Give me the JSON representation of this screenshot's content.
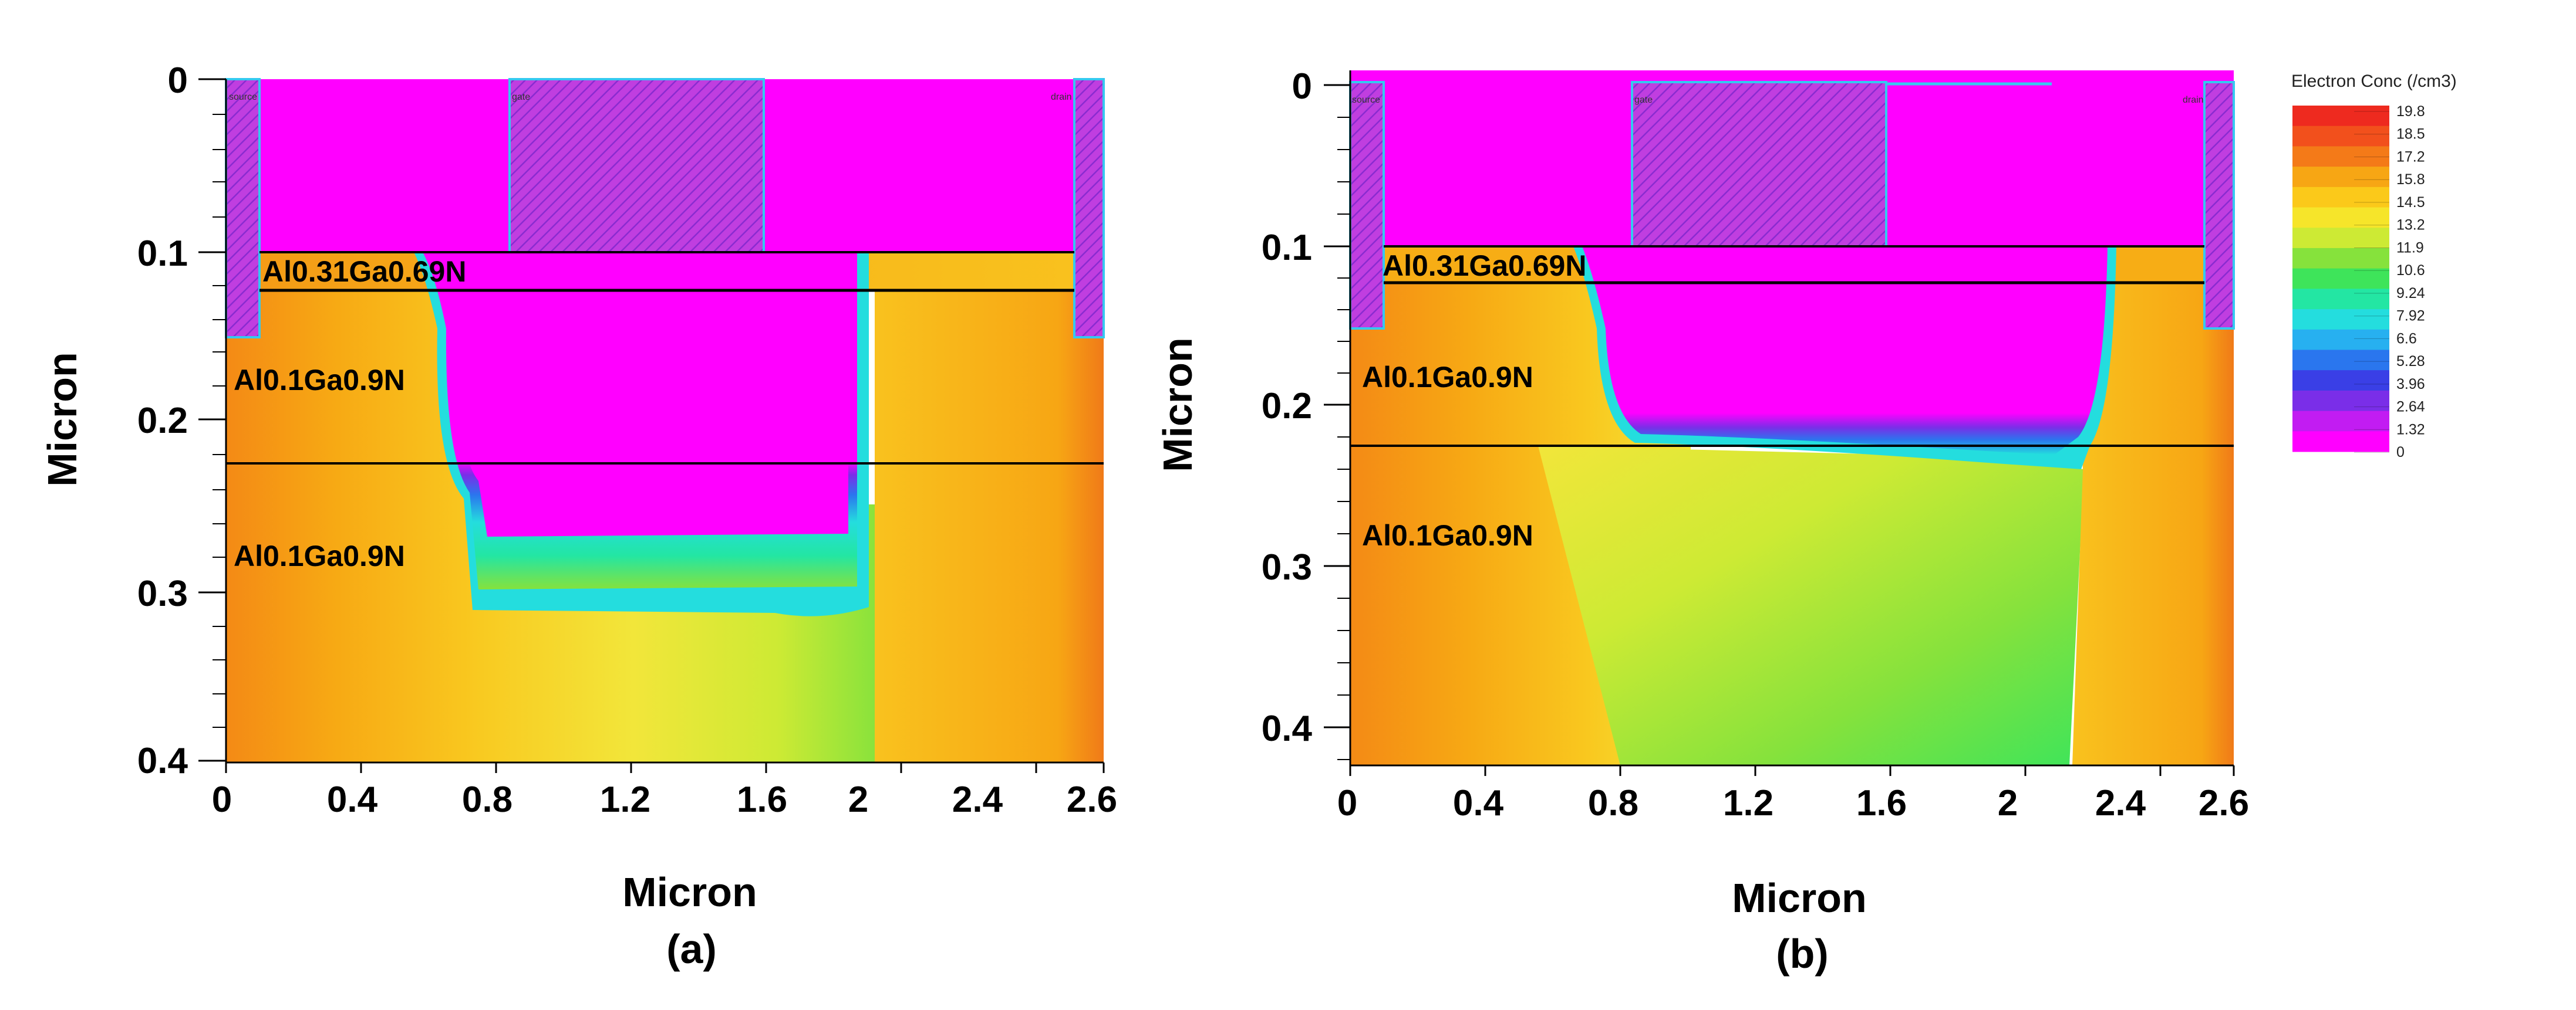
{
  "chart_data": [
    {
      "type": "heatmap",
      "panel_label": "(a)",
      "xlabel": "Micron",
      "ylabel": "Micron",
      "xlim": [
        0,
        2.6
      ],
      "ylim": [
        0.4,
        0
      ],
      "x_ticks": [
        "0",
        "0.4",
        "0.8",
        "1.2",
        "1.6",
        "2",
        "2.4",
        "2.6"
      ],
      "y_ticks": [
        "0",
        "0.1",
        "0.2",
        "0.3",
        "0.4"
      ],
      "regions": [
        {
          "label": "Al0.31Ga0.69N",
          "y_from": 0.1,
          "y_to": 0.125
        },
        {
          "label": "Al0.1Ga0.9N",
          "y_from": 0.125,
          "y_to": 0.225
        },
        {
          "label": "Al0.1Ga0.9N",
          "y_from": 0.225,
          "y_to": 0.4
        }
      ],
      "contacts": [
        {
          "label": "source",
          "x": [
            0.0,
            0.1
          ],
          "y": [
            0.0,
            0.15
          ]
        },
        {
          "label": "gate",
          "x": [
            0.9,
            1.7
          ],
          "y": [
            0.0,
            0.1
          ]
        },
        {
          "label": "drain",
          "x": [
            2.5,
            2.6
          ],
          "y": [
            0.0,
            0.15
          ]
        }
      ],
      "depletion_region": {
        "x_left": 0.65,
        "x_right": 2.0,
        "bottom_depth": 0.27,
        "edge_depth": 0.31
      },
      "colorbar_min": 0,
      "colorbar_max": 19.8
    },
    {
      "type": "heatmap",
      "panel_label": "(b)",
      "xlabel": "Micron",
      "ylabel": "Micron",
      "xlim": [
        0,
        2.6
      ],
      "ylim": [
        0.42,
        0
      ],
      "x_ticks": [
        "0",
        "0.4",
        "0.8",
        "1.2",
        "1.6",
        "2",
        "2.4",
        "2.6"
      ],
      "y_ticks": [
        "0",
        "0.1",
        "0.2",
        "0.3",
        "0.4"
      ],
      "regions": [
        {
          "label": "Al0.31Ga0.69N",
          "y_from": 0.1,
          "y_to": 0.122
        },
        {
          "label": "Al0.1Ga0.9N",
          "y_from": 0.122,
          "y_to": 0.222
        },
        {
          "label": "Al0.1Ga0.9N",
          "y_from": 0.222,
          "y_to": 0.42
        }
      ],
      "contacts": [
        {
          "label": "source",
          "x": [
            0.0,
            0.1
          ],
          "y": [
            0.0,
            0.15
          ]
        },
        {
          "label": "gate",
          "x": [
            0.9,
            1.7
          ],
          "y": [
            0.0,
            0.1
          ]
        },
        {
          "label": "drain",
          "x": [
            2.5,
            2.6
          ],
          "y": [
            0.0,
            0.15
          ]
        }
      ],
      "depletion_region": {
        "x_left": 0.75,
        "x_right": 2.4,
        "bottom_depth_left": 0.21,
        "bottom_depth_right": 0.23
      },
      "colorbar_min": 0,
      "colorbar_max": 19.8
    }
  ],
  "legend": {
    "title": "Electron Conc (/cm3)",
    "ticks": [
      "19.8",
      "18.5",
      "17.2",
      "15.8",
      "14.5",
      "13.2",
      "11.9",
      "10.6",
      "9.24",
      "7.92",
      "6.6",
      "5.28",
      "3.96",
      "2.64",
      "1.32",
      "0"
    ],
    "colors": [
      "#ee2a1f",
      "#f2501c",
      "#f47a18",
      "#f7a614",
      "#fbc91a",
      "#f6e52a",
      "#cdea34",
      "#86e23c",
      "#3ee45a",
      "#23e6a3",
      "#24ddde",
      "#27b0f0",
      "#2a76ee",
      "#3a3fe6",
      "#7a2ee8",
      "#c21cf2",
      "#ff00ff"
    ]
  }
}
